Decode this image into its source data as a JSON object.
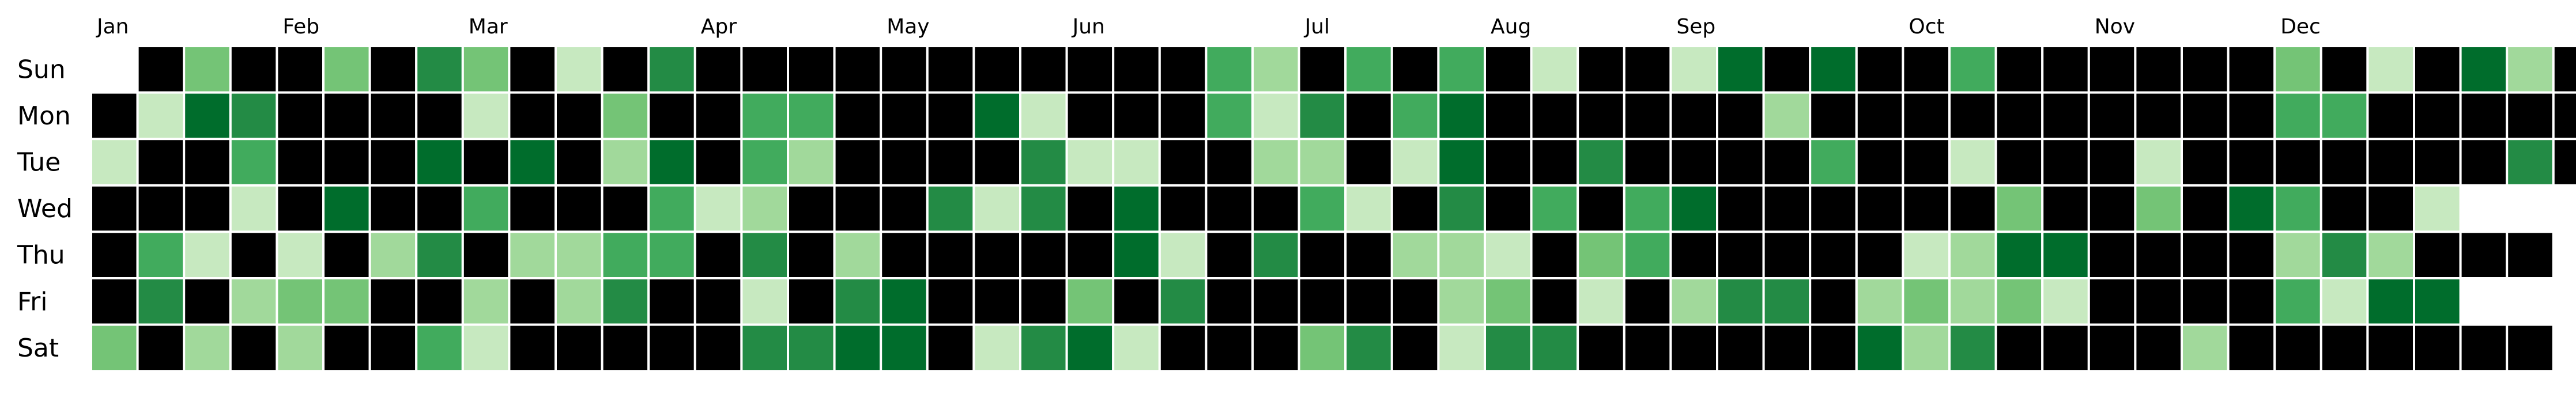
{
  "chart_data": {
    "type": "heatmap",
    "title": "",
    "xlabel": "",
    "ylabel": "",
    "months": [
      "Jan",
      "Feb",
      "Mar",
      "Apr",
      "May",
      "Jun",
      "Jul",
      "Aug",
      "Sep",
      "Oct",
      "Nov",
      "Dec"
    ],
    "month_start_week": [
      0,
      4,
      8,
      13,
      17,
      21,
      26,
      30,
      34,
      39,
      43,
      47
    ],
    "days": [
      "Sun",
      "Mon",
      "Tue",
      "Wed",
      "Thu",
      "Fri",
      "Sat"
    ],
    "value_range": [
      0,
      6
    ],
    "colorscale": [
      "#000000",
      "#c7e9c0",
      "#a1d99b",
      "#74c476",
      "#41ab5d",
      "#238b45",
      "#006d2c"
    ],
    "cells": [
      [
        null,
        0,
        3,
        0,
        0,
        3,
        0,
        5,
        3,
        0,
        1,
        0,
        5,
        0,
        0,
        0,
        0,
        0,
        0,
        0,
        0,
        0,
        0,
        0,
        4,
        2,
        0,
        4,
        0,
        4,
        0,
        1,
        0,
        0,
        1,
        6,
        0,
        6,
        0,
        0,
        4,
        0,
        0,
        0,
        0,
        0,
        0,
        3,
        0,
        1,
        0,
        6,
        2,
        0
      ],
      [
        0,
        1,
        6,
        5,
        0,
        0,
        0,
        0,
        1,
        0,
        0,
        3,
        0,
        0,
        4,
        4,
        0,
        0,
        0,
        6,
        1,
        0,
        0,
        0,
        4,
        1,
        5,
        0,
        4,
        6,
        0,
        0,
        0,
        0,
        0,
        0,
        2,
        0,
        0,
        0,
        0,
        0,
        0,
        0,
        0,
        0,
        0,
        4,
        4,
        0,
        0,
        0,
        0,
        0
      ],
      [
        1,
        0,
        0,
        4,
        0,
        0,
        0,
        6,
        0,
        6,
        0,
        2,
        6,
        0,
        4,
        2,
        0,
        0,
        0,
        0,
        5,
        1,
        1,
        0,
        0,
        2,
        2,
        0,
        1,
        6,
        0,
        0,
        5,
        0,
        0,
        0,
        0,
        4,
        0,
        0,
        1,
        0,
        0,
        0,
        1,
        0,
        0,
        0,
        0,
        0,
        0,
        0,
        5,
        0
      ],
      [
        0,
        0,
        0,
        1,
        0,
        6,
        0,
        0,
        4,
        0,
        0,
        0,
        4,
        1,
        2,
        0,
        0,
        0,
        5,
        1,
        5,
        0,
        6,
        0,
        0,
        0,
        4,
        1,
        0,
        5,
        0,
        4,
        0,
        4,
        6,
        0,
        0,
        0,
        0,
        0,
        0,
        3,
        0,
        0,
        3,
        0,
        6,
        4,
        0,
        0,
        1,
        null,
        null,
        null
      ],
      [
        0,
        4,
        1,
        0,
        1,
        0,
        2,
        5,
        0,
        2,
        2,
        4,
        4,
        0,
        5,
        0,
        2,
        0,
        0,
        0,
        0,
        0,
        6,
        1,
        0,
        5,
        0,
        0,
        2,
        2,
        1,
        0,
        3,
        4,
        0,
        0,
        0,
        0,
        0,
        1,
        2,
        6,
        6,
        0,
        0,
        0,
        0,
        2,
        5,
        2,
        0,
        0,
        0,
        null
      ],
      [
        0,
        5,
        0,
        2,
        3,
        3,
        0,
        0,
        2,
        0,
        2,
        5,
        0,
        0,
        1,
        0,
        5,
        6,
        0,
        0,
        0,
        3,
        0,
        5,
        0,
        0,
        0,
        0,
        0,
        2,
        3,
        0,
        1,
        0,
        2,
        5,
        5,
        0,
        2,
        3,
        2,
        3,
        1,
        0,
        0,
        0,
        0,
        4,
        1,
        6,
        6,
        null,
        null,
        null
      ],
      [
        3,
        0,
        2,
        0,
        2,
        0,
        0,
        4,
        1,
        0,
        0,
        0,
        0,
        0,
        5,
        5,
        6,
        6,
        0,
        1,
        5,
        6,
        1,
        0,
        0,
        0,
        3,
        5,
        0,
        1,
        5,
        5,
        0,
        0,
        0,
        0,
        0,
        0,
        6,
        2,
        5,
        0,
        0,
        0,
        0,
        2,
        0,
        0,
        0,
        0,
        0,
        0,
        0,
        null
      ]
    ]
  }
}
